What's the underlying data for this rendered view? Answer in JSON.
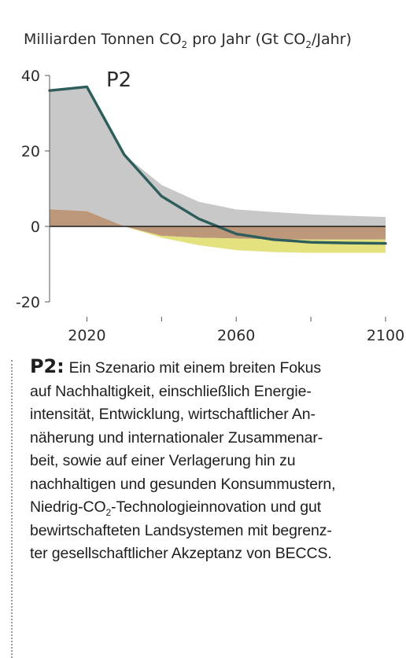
{
  "header": {
    "unit_pre": "Milliarden Tonnen CO",
    "unit_sub1": "2",
    "unit_mid": " pro Jahr (Gt CO",
    "unit_sub2": "2",
    "unit_post": "/Jahr)"
  },
  "chart_data": {
    "type": "area",
    "title": "P2",
    "xlabel": "",
    "ylabel": "",
    "xlim": [
      2010,
      2100
    ],
    "ylim": [
      -20,
      40
    ],
    "x_ticks": [
      2020,
      2060,
      2100
    ],
    "x_minor_ticks": [
      2040,
      2080
    ],
    "y_ticks": [
      -20,
      0,
      20,
      40
    ],
    "zero_line": true,
    "grid": false,
    "colors": {
      "gray": "#c8c8c8",
      "brown": "#bc977a",
      "yellow": "#e3e27e",
      "line": "#2d5e5b"
    },
    "series": [
      {
        "kind": "band",
        "x": [
          2010,
          2020,
          2030,
          2040,
          2050,
          2060,
          2070,
          2080,
          2090,
          2100
        ],
        "lower": [
          0,
          0,
          0,
          0,
          0,
          0,
          0,
          0,
          0,
          0
        ],
        "upper": [
          36,
          37,
          19,
          11,
          6.5,
          4.5,
          3.8,
          3.2,
          2.8,
          2.5
        ]
      },
      {
        "kind": "band",
        "x": [
          2010,
          2020,
          2030,
          2040,
          2050,
          2060,
          2070,
          2080,
          2090,
          2100
        ],
        "lower": [
          0,
          0,
          0,
          -2.5,
          -3,
          -3.2,
          -3.4,
          -3.5,
          -3.5,
          -3.5
        ],
        "upper": [
          4.5,
          4,
          0,
          0,
          0,
          0,
          0,
          0,
          0,
          0
        ]
      },
      {
        "kind": "band",
        "x": [
          2010,
          2020,
          2030,
          2040,
          2050,
          2060,
          2070,
          2080,
          2090,
          2100
        ],
        "lower": [
          0,
          0,
          0,
          -3,
          -5,
          -6.3,
          -6.8,
          -7,
          -7,
          -7
        ],
        "upper": [
          0,
          0,
          0,
          -2.5,
          -3,
          -3.2,
          -3.4,
          -3.5,
          -3.5,
          -3.5
        ]
      },
      {
        "kind": "line",
        "x": [
          2010,
          2020,
          2030,
          2040,
          2050,
          2060,
          2070,
          2080,
          2090,
          2100
        ],
        "y": [
          36,
          37,
          19,
          8,
          2,
          -2,
          -3.5,
          -4.2,
          -4.4,
          -4.5
        ]
      }
    ]
  },
  "description": {
    "lead": "P2:",
    "lines": [
      "Ein Szenario mit einem breiten Fokus",
      "auf Nachhaltigkeit, einschließlich Energie-",
      "intensität, Entwicklung, wirtschaftlicher An-",
      "näherung und internationaler Zusammenar-",
      "beit, sowie auf einer Verlagerung hin zu",
      "nachhaltigen und gesunden Konsummustern,"
    ],
    "line7_pre": "Niedrig-CO",
    "line7_sub": "2",
    "line7_post": "-Technologieinnovation und gut",
    "lines_after": [
      "bewirtschafteten Landsystemen mit begrenz-",
      "ter gesellschaftlicher Akzeptanz von BECCS."
    ]
  }
}
